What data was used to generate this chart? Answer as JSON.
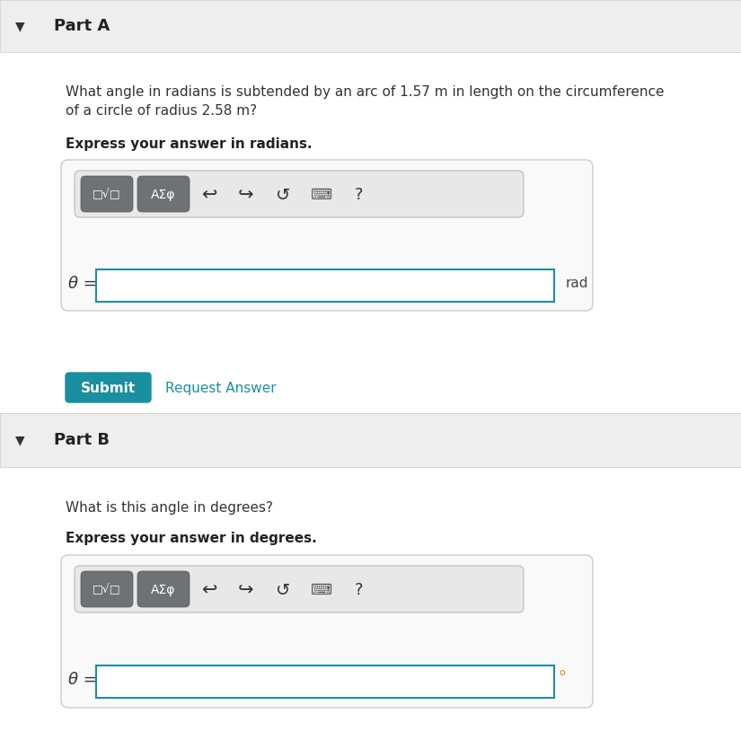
{
  "bg_color": "#f5f5f5",
  "white": "#ffffff",
  "part_header_bg": "#eeeeee",
  "border_color": "#cccccc",
  "teal_color": "#1a8fa0",
  "teal_btn": "#1a8fa0",
  "text_dark": "#333333",
  "text_medium": "#555555",
  "icon_bg": "#6e7275",
  "input_border": "#1a8fa0",
  "degree_color": "#cc8800",
  "parts": [
    {
      "label": "Part A",
      "question_line1": "What angle in radians is subtended by an arc of 1.57 m in length on the circumference",
      "question_line2": "of a circle of radius 2.58 m?",
      "bold_instruction": "Express your answer in radians.",
      "input_unit": "rad",
      "has_submit": true,
      "theta_symbol": "θ ="
    },
    {
      "label": "Part B",
      "question_line1": "What is this angle in degrees?",
      "question_line2": "",
      "bold_instruction": "Express your answer in degrees.",
      "input_unit": "°",
      "has_submit": false,
      "theta_symbol": "θ ="
    }
  ],
  "submit_text": "Submit",
  "request_answer_text": "Request Answer"
}
